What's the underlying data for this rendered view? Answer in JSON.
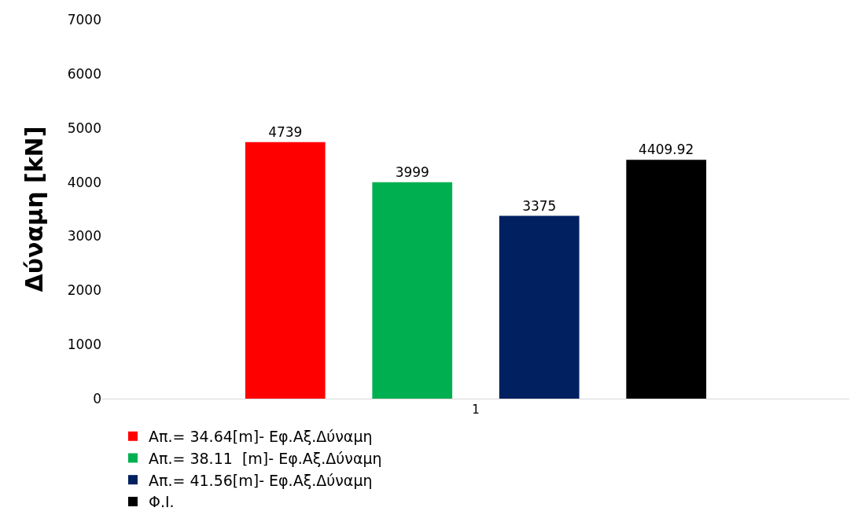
{
  "chart_data": {
    "type": "bar",
    "ylabel": "Δύναμη [kN]",
    "categories": [
      "1"
    ],
    "series": [
      {
        "name": "Απ.= 34.64[m]- Εφ.Αξ.Δύναμη",
        "color": "#ff0000",
        "values": [
          4739
        ]
      },
      {
        "name": "Απ.= 38.11  [m]- Εφ.Αξ.Δύναμη",
        "color": "#00b050",
        "values": [
          3999
        ]
      },
      {
        "name": "Απ.= 41.56[m]- Εφ.Αξ.Δύναμη",
        "color": "#002060",
        "values": [
          3375
        ]
      },
      {
        "name": "Φ.Ι.",
        "color": "#000000",
        "values": [
          4409.92
        ]
      }
    ],
    "ylim": [
      0,
      7000
    ],
    "yticks": [
      0,
      1000,
      2000,
      3000,
      4000,
      5000,
      6000,
      7000
    ],
    "grid": false,
    "legend": "bottom",
    "data_labels": true
  }
}
